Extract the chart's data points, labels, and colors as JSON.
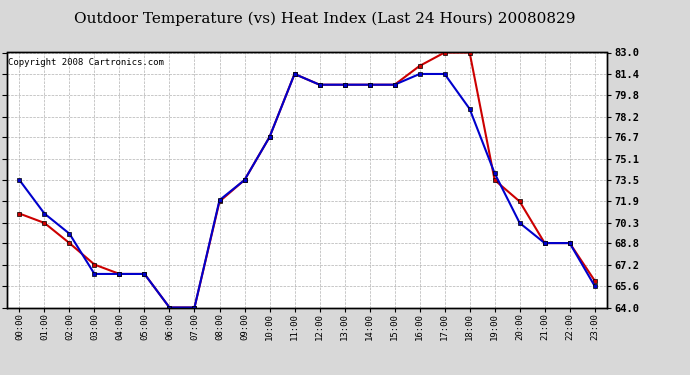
{
  "title": "Outdoor Temperature (vs) Heat Index (Last 24 Hours) 20080829",
  "copyright": "Copyright 2008 Cartronics.com",
  "hours": [
    "00:00",
    "01:00",
    "02:00",
    "03:00",
    "04:00",
    "05:00",
    "06:00",
    "07:00",
    "08:00",
    "09:00",
    "10:00",
    "11:00",
    "12:00",
    "13:00",
    "14:00",
    "15:00",
    "16:00",
    "17:00",
    "18:00",
    "19:00",
    "20:00",
    "21:00",
    "22:00",
    "23:00"
  ],
  "temp": [
    73.5,
    71.0,
    69.5,
    66.5,
    66.5,
    66.5,
    64.0,
    64.0,
    72.0,
    73.5,
    76.7,
    81.4,
    80.6,
    80.6,
    80.6,
    80.6,
    81.4,
    81.4,
    78.8,
    74.0,
    70.3,
    68.8,
    68.8,
    65.6
  ],
  "heat_index": [
    71.0,
    70.3,
    68.8,
    67.2,
    66.5,
    66.5,
    64.0,
    64.0,
    71.9,
    73.5,
    76.7,
    81.4,
    80.6,
    80.6,
    80.6,
    80.6,
    82.0,
    83.0,
    83.0,
    73.5,
    71.9,
    68.8,
    68.8,
    66.0
  ],
  "temp_color": "#0000cc",
  "heat_color": "#cc0000",
  "bg_color": "#d8d8d8",
  "plot_bg": "#ffffff",
  "grid_color": "#aaaaaa",
  "border_color": "#000000",
  "ylim": [
    64.0,
    83.0
  ],
  "yticks": [
    64.0,
    65.6,
    67.2,
    68.8,
    70.3,
    71.9,
    73.5,
    75.1,
    76.7,
    78.2,
    79.8,
    81.4,
    83.0
  ],
  "title_fontsize": 11,
  "copyright_fontsize": 6.5
}
